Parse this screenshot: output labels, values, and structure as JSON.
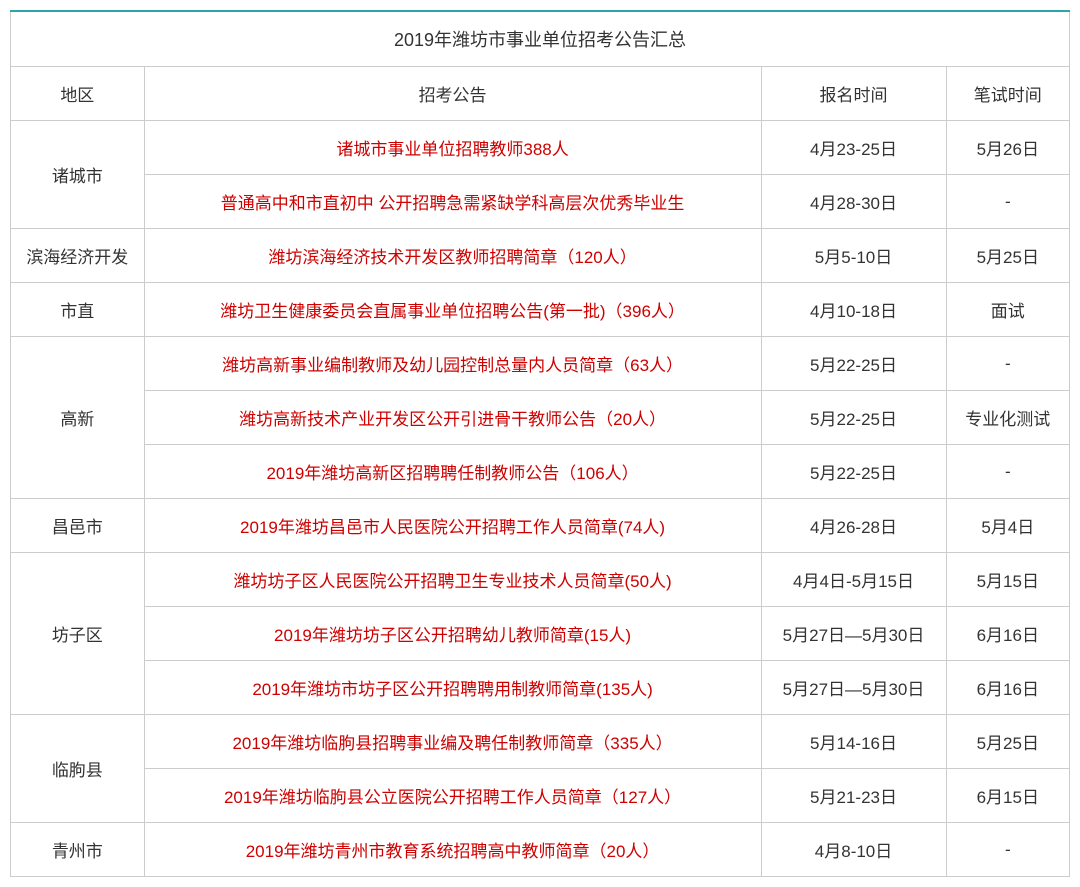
{
  "title": "2019年潍坊市事业单位招考公告汇总",
  "headers": {
    "region": "地区",
    "announcement": "招考公告",
    "apply_time": "报名时间",
    "exam_time": "笔试时间"
  },
  "colors": {
    "link": "#ce0000",
    "text": "#333333",
    "border": "#cccccc",
    "top_border": "#2aa6a6",
    "background": "#ffffff"
  },
  "font": {
    "title_size": 18,
    "cell_size": 17,
    "family": "Microsoft YaHei"
  },
  "col_widths": {
    "region": 130,
    "announce": 600,
    "apply": 180,
    "exam": 120
  },
  "regions": [
    {
      "name": "诸城市",
      "rows": [
        {
          "announcement": "诸城市事业单位招聘教师388人",
          "apply": "4月23-25日",
          "exam": "5月26日"
        },
        {
          "announcement": "普通高中和市直初中 公开招聘急需紧缺学科高层次优秀毕业生",
          "apply": "4月28-30日",
          "exam": "-"
        }
      ]
    },
    {
      "name": "滨海经济开发",
      "rows": [
        {
          "announcement": "潍坊滨海经济技术开发区教师招聘简章（120人）",
          "apply": "5月5-10日",
          "exam": "5月25日"
        }
      ]
    },
    {
      "name": "市直",
      "rows": [
        {
          "announcement": "潍坊卫生健康委员会直属事业单位招聘公告(第一批)（396人）",
          "apply": "4月10-18日",
          "exam": "面试"
        }
      ]
    },
    {
      "name": "高新",
      "rows": [
        {
          "announcement": "潍坊高新事业编制教师及幼儿园控制总量内人员简章（63人）",
          "apply": "5月22-25日",
          "exam": "-"
        },
        {
          "announcement": "潍坊高新技术产业开发区公开引进骨干教师公告（20人）",
          "apply": "5月22-25日",
          "exam": "专业化测试"
        },
        {
          "announcement": "2019年潍坊高新区招聘聘任制教师公告（106人）",
          "apply": "5月22-25日",
          "exam": "-"
        }
      ]
    },
    {
      "name": "昌邑市",
      "rows": [
        {
          "announcement": "2019年潍坊昌邑市人民医院公开招聘工作人员简章(74人)",
          "apply": "4月26-28日",
          "exam": "5月4日"
        }
      ]
    },
    {
      "name": "坊子区",
      "rows": [
        {
          "announcement": "潍坊坊子区人民医院公开招聘卫生专业技术人员简章(50人)",
          "apply": "4月4日-5月15日",
          "exam": "5月15日"
        },
        {
          "announcement": "2019年潍坊坊子区公开招聘幼儿教师简章(15人)",
          "apply": "5月27日—5月30日",
          "exam": "6月16日"
        },
        {
          "announcement": "2019年潍坊市坊子区公开招聘聘用制教师简章(135人)",
          "apply": "5月27日—5月30日",
          "exam": "6月16日"
        }
      ]
    },
    {
      "name": "临朐县",
      "rows": [
        {
          "announcement": "2019年潍坊临朐县招聘事业编及聘任制教师简章（335人）",
          "apply": "5月14-16日",
          "exam": "5月25日"
        },
        {
          "announcement": "2019年潍坊临朐县公立医院公开招聘工作人员简章（127人）",
          "apply": "5月21-23日",
          "exam": "6月15日"
        }
      ]
    },
    {
      "name": "青州市",
      "rows": [
        {
          "announcement": "2019年潍坊青州市教育系统招聘高中教师简章（20人）",
          "apply": "4月8-10日",
          "exam": "-"
        }
      ]
    }
  ]
}
